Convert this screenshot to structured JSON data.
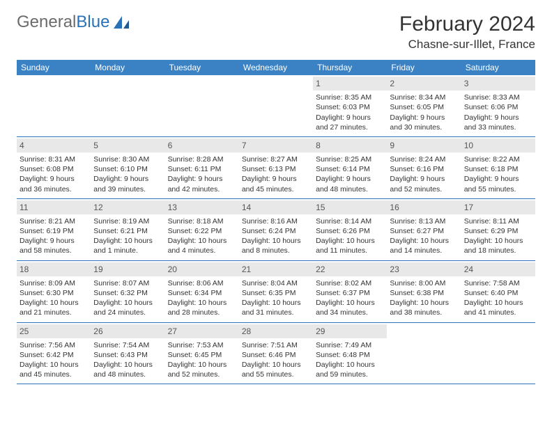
{
  "logo": {
    "text1": "General",
    "text2": "Blue"
  },
  "title": "February 2024",
  "location": "Chasne-sur-Illet, France",
  "colors": {
    "header_bg": "#3b82c4",
    "header_text": "#ffffff",
    "daynum_bg": "#e8e8e8",
    "border": "#2a71b8",
    "logo_gray": "#6b6b6b",
    "logo_blue": "#2a71b8"
  },
  "weekdays": [
    "Sunday",
    "Monday",
    "Tuesday",
    "Wednesday",
    "Thursday",
    "Friday",
    "Saturday"
  ],
  "weeks": [
    [
      null,
      null,
      null,
      null,
      {
        "n": "1",
        "sr": "Sunrise: 8:35 AM",
        "ss": "Sunset: 6:03 PM",
        "dl": "Daylight: 9 hours and 27 minutes."
      },
      {
        "n": "2",
        "sr": "Sunrise: 8:34 AM",
        "ss": "Sunset: 6:05 PM",
        "dl": "Daylight: 9 hours and 30 minutes."
      },
      {
        "n": "3",
        "sr": "Sunrise: 8:33 AM",
        "ss": "Sunset: 6:06 PM",
        "dl": "Daylight: 9 hours and 33 minutes."
      }
    ],
    [
      {
        "n": "4",
        "sr": "Sunrise: 8:31 AM",
        "ss": "Sunset: 6:08 PM",
        "dl": "Daylight: 9 hours and 36 minutes."
      },
      {
        "n": "5",
        "sr": "Sunrise: 8:30 AM",
        "ss": "Sunset: 6:10 PM",
        "dl": "Daylight: 9 hours and 39 minutes."
      },
      {
        "n": "6",
        "sr": "Sunrise: 8:28 AM",
        "ss": "Sunset: 6:11 PM",
        "dl": "Daylight: 9 hours and 42 minutes."
      },
      {
        "n": "7",
        "sr": "Sunrise: 8:27 AM",
        "ss": "Sunset: 6:13 PM",
        "dl": "Daylight: 9 hours and 45 minutes."
      },
      {
        "n": "8",
        "sr": "Sunrise: 8:25 AM",
        "ss": "Sunset: 6:14 PM",
        "dl": "Daylight: 9 hours and 48 minutes."
      },
      {
        "n": "9",
        "sr": "Sunrise: 8:24 AM",
        "ss": "Sunset: 6:16 PM",
        "dl": "Daylight: 9 hours and 52 minutes."
      },
      {
        "n": "10",
        "sr": "Sunrise: 8:22 AM",
        "ss": "Sunset: 6:18 PM",
        "dl": "Daylight: 9 hours and 55 minutes."
      }
    ],
    [
      {
        "n": "11",
        "sr": "Sunrise: 8:21 AM",
        "ss": "Sunset: 6:19 PM",
        "dl": "Daylight: 9 hours and 58 minutes."
      },
      {
        "n": "12",
        "sr": "Sunrise: 8:19 AM",
        "ss": "Sunset: 6:21 PM",
        "dl": "Daylight: 10 hours and 1 minute."
      },
      {
        "n": "13",
        "sr": "Sunrise: 8:18 AM",
        "ss": "Sunset: 6:22 PM",
        "dl": "Daylight: 10 hours and 4 minutes."
      },
      {
        "n": "14",
        "sr": "Sunrise: 8:16 AM",
        "ss": "Sunset: 6:24 PM",
        "dl": "Daylight: 10 hours and 8 minutes."
      },
      {
        "n": "15",
        "sr": "Sunrise: 8:14 AM",
        "ss": "Sunset: 6:26 PM",
        "dl": "Daylight: 10 hours and 11 minutes."
      },
      {
        "n": "16",
        "sr": "Sunrise: 8:13 AM",
        "ss": "Sunset: 6:27 PM",
        "dl": "Daylight: 10 hours and 14 minutes."
      },
      {
        "n": "17",
        "sr": "Sunrise: 8:11 AM",
        "ss": "Sunset: 6:29 PM",
        "dl": "Daylight: 10 hours and 18 minutes."
      }
    ],
    [
      {
        "n": "18",
        "sr": "Sunrise: 8:09 AM",
        "ss": "Sunset: 6:30 PM",
        "dl": "Daylight: 10 hours and 21 minutes."
      },
      {
        "n": "19",
        "sr": "Sunrise: 8:07 AM",
        "ss": "Sunset: 6:32 PM",
        "dl": "Daylight: 10 hours and 24 minutes."
      },
      {
        "n": "20",
        "sr": "Sunrise: 8:06 AM",
        "ss": "Sunset: 6:34 PM",
        "dl": "Daylight: 10 hours and 28 minutes."
      },
      {
        "n": "21",
        "sr": "Sunrise: 8:04 AM",
        "ss": "Sunset: 6:35 PM",
        "dl": "Daylight: 10 hours and 31 minutes."
      },
      {
        "n": "22",
        "sr": "Sunrise: 8:02 AM",
        "ss": "Sunset: 6:37 PM",
        "dl": "Daylight: 10 hours and 34 minutes."
      },
      {
        "n": "23",
        "sr": "Sunrise: 8:00 AM",
        "ss": "Sunset: 6:38 PM",
        "dl": "Daylight: 10 hours and 38 minutes."
      },
      {
        "n": "24",
        "sr": "Sunrise: 7:58 AM",
        "ss": "Sunset: 6:40 PM",
        "dl": "Daylight: 10 hours and 41 minutes."
      }
    ],
    [
      {
        "n": "25",
        "sr": "Sunrise: 7:56 AM",
        "ss": "Sunset: 6:42 PM",
        "dl": "Daylight: 10 hours and 45 minutes."
      },
      {
        "n": "26",
        "sr": "Sunrise: 7:54 AM",
        "ss": "Sunset: 6:43 PM",
        "dl": "Daylight: 10 hours and 48 minutes."
      },
      {
        "n": "27",
        "sr": "Sunrise: 7:53 AM",
        "ss": "Sunset: 6:45 PM",
        "dl": "Daylight: 10 hours and 52 minutes."
      },
      {
        "n": "28",
        "sr": "Sunrise: 7:51 AM",
        "ss": "Sunset: 6:46 PM",
        "dl": "Daylight: 10 hours and 55 minutes."
      },
      {
        "n": "29",
        "sr": "Sunrise: 7:49 AM",
        "ss": "Sunset: 6:48 PM",
        "dl": "Daylight: 10 hours and 59 minutes."
      },
      null,
      null
    ]
  ]
}
